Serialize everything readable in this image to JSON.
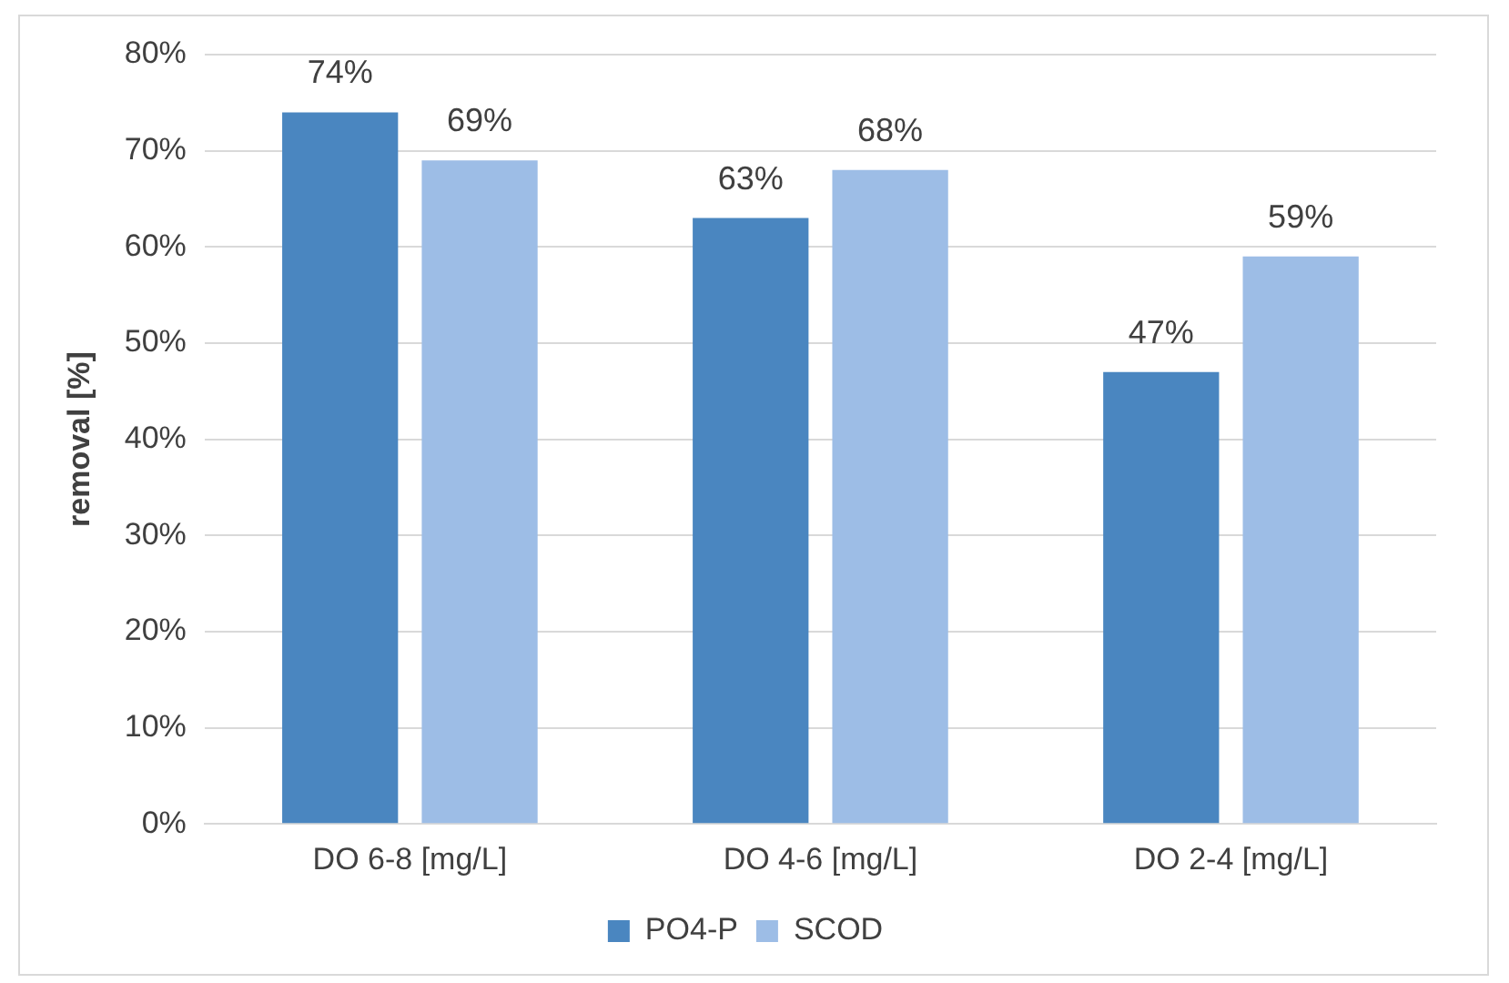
{
  "chart_data": {
    "type": "bar",
    "ylabel": "removal [%]",
    "categories": [
      "DO 6-8 [mg/L]",
      "DO 4-6 [mg/L]",
      "DO 2-4 [mg/L]"
    ],
    "series": [
      {
        "name": "PO4-P",
        "color": "#4a86c0",
        "values": [
          74,
          63,
          47
        ],
        "value_labels": [
          "74%",
          "63%",
          "47%"
        ]
      },
      {
        "name": "SCOD",
        "color": "#9dbde6",
        "values": [
          69,
          68,
          59
        ],
        "value_labels": [
          "69%",
          "68%",
          "59%"
        ]
      }
    ],
    "ylim": [
      0,
      80
    ],
    "yticks": [
      {
        "value": 0,
        "label": "0%"
      },
      {
        "value": 10,
        "label": "10%"
      },
      {
        "value": 20,
        "label": "20%"
      },
      {
        "value": 30,
        "label": "30%"
      },
      {
        "value": 40,
        "label": "40%"
      },
      {
        "value": 50,
        "label": "50%"
      },
      {
        "value": 60,
        "label": "60%"
      },
      {
        "value": 70,
        "label": "70%"
      },
      {
        "value": 80,
        "label": "80%"
      }
    ],
    "grid": "y",
    "legend": "bottom"
  }
}
